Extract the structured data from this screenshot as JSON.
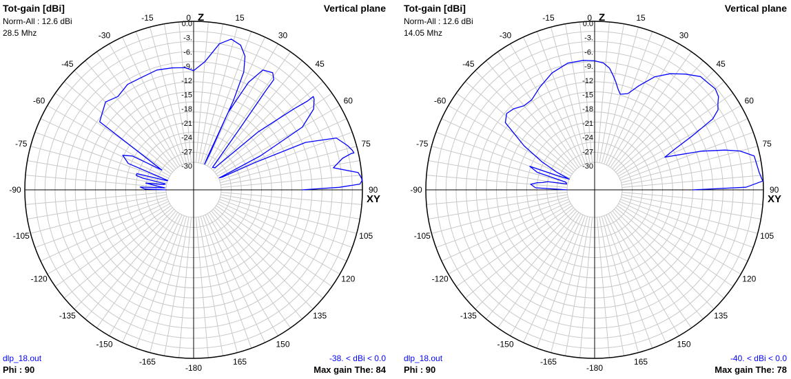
{
  "chart_data": [
    {
      "type": "polar",
      "title": "Tot-gain [dBi]",
      "subtitle": "Vertical plane",
      "norm_label": "Norm-All : 12.6 dBi",
      "frequency": "28.5 Mhz",
      "file": "dlp_18.out",
      "phi": "Phi : 90",
      "range_label": "-38. < dBi < 0.0",
      "max_gain": "Max gain The: 84",
      "axis_z": "Z",
      "axis_xy": "XY",
      "angle_labels": [
        "0",
        "15",
        "30",
        "45",
        "60",
        "75",
        "90",
        "105",
        "120",
        "135",
        "150",
        "165",
        "-180",
        "-165",
        "-150",
        "-135",
        "-120",
        "-105",
        "-90",
        "-75",
        "-60",
        "-45",
        "-30",
        "-15"
      ],
      "db_labels": [
        "0.0",
        "-3.",
        "-6.",
        "-9.",
        "-12",
        "-15",
        "-18",
        "-21",
        "-24",
        "-27",
        "-30"
      ],
      "r_min_db": -30,
      "r_max_db": 0,
      "series": [
        {
          "color": "#0000ff",
          "theta": [
            -90,
            -89,
            -87,
            -86,
            -84,
            -82,
            -80,
            -78,
            -77,
            -76,
            -74,
            -71,
            -70,
            -68,
            -64,
            -61,
            -58,
            -54,
            -50,
            -45,
            -39,
            -32,
            -25,
            -17,
            -10,
            -4,
            0,
            5,
            10,
            14,
            18,
            21,
            23,
            24,
            24,
            23,
            23,
            24,
            27,
            30,
            34,
            36,
            36,
            37,
            40,
            44,
            48,
            51,
            52,
            52,
            53,
            56,
            60,
            63,
            65,
            66,
            66,
            67,
            70,
            74,
            76,
            77,
            77,
            78,
            81,
            84,
            86,
            87,
            87,
            88,
            89,
            90
          ],
          "db": [
            -30,
            -25.5,
            -24.5,
            -29.7,
            -28.1,
            -25.6,
            -29.4,
            -29.7,
            -24.8,
            -23.3,
            -23.3,
            -29.9,
            -30,
            -20.9,
            -19.1,
            -21,
            -27.9,
            -11.2,
            -10.5,
            -9.4,
            -10.3,
            -9.4,
            -9.5,
            -9.2,
            -9.5,
            -9.8,
            -10.5,
            -8.5,
            -4.3,
            -2.8,
            -3.5,
            -5.4,
            -8.6,
            -15.1,
            -27.4,
            -29.9,
            -28.3,
            -17.8,
            -10.2,
            -6.4,
            -5.8,
            -6.9,
            -9.6,
            -19.7,
            -29.6,
            -29.3,
            -17.5,
            -8.5,
            -5.2,
            -3.6,
            -3.8,
            -5.1,
            -9.2,
            -19.9,
            -29.8,
            -29.2,
            -21.4,
            -10,
            -3.6,
            -1.8,
            -1.1,
            -0.9,
            -1.5,
            -3.5,
            -5.8,
            -0.7,
            -0.1,
            0,
            -0.1,
            -0.5,
            -4.9,
            -12.8
          ]
        }
      ]
    },
    {
      "type": "polar",
      "title": "Tot-gain [dBi]",
      "subtitle": "Vertical plane",
      "norm_label": "Norm-All : 12.6 dBi",
      "frequency": "14.05 Mhz",
      "file": "dlp_18.out",
      "phi": "Phi : 90",
      "range_label": "-40. < dBi < 0.0",
      "max_gain": "Max gain The: 78",
      "axis_z": "Z",
      "axis_xy": "XY",
      "angle_labels": [
        "0",
        "15",
        "30",
        "45",
        "60",
        "75",
        "90",
        "105",
        "120",
        "135",
        "150",
        "165",
        "-180",
        "-165",
        "-150",
        "-135",
        "-120",
        "-105",
        "-90",
        "-75",
        "-60",
        "-45",
        "-30",
        "-15"
      ],
      "db_labels": [
        "0.0",
        "-3.",
        "-6.",
        "-9.",
        "-12",
        "-15",
        "-18",
        "-21",
        "-24",
        "-27",
        "-30"
      ],
      "r_min_db": -30,
      "r_max_db": 0,
      "series": [
        {
          "color": "#0000ff",
          "theta": [
            -90,
            -88,
            -85,
            -83,
            -82,
            -80,
            -78,
            -75,
            -73,
            -70,
            -69,
            -67,
            -65,
            -62,
            -58,
            -53,
            -49,
            -45,
            -40,
            -35,
            -28,
            -20,
            -12,
            -5,
            0,
            4,
            7,
            9,
            11,
            13,
            15,
            19,
            23,
            28,
            33,
            38,
            43,
            47,
            50,
            53,
            55,
            57,
            59,
            61,
            63,
            65,
            67,
            70,
            73,
            75,
            78,
            81,
            84,
            87,
            89,
            90
          ],
          "db": [
            -30,
            -23.3,
            -22.2,
            -23.5,
            -24.7,
            -25.8,
            -29.8,
            -29.5,
            -23.1,
            -21.2,
            -27.6,
            -30,
            -27,
            -23.2,
            -18.2,
            -12.1,
            -11.1,
            -11.5,
            -12.5,
            -12.5,
            -11.1,
            -9.4,
            -8.3,
            -8.2,
            -8.4,
            -8.8,
            -9.8,
            -11.1,
            -12.4,
            -13.8,
            -14.8,
            -14.2,
            -11.8,
            -8.6,
            -6.4,
            -4.6,
            -2.9,
            -2.7,
            -2.4,
            -2.9,
            -3.9,
            -4.6,
            -6.6,
            -12.1,
            -16.7,
            -19.4,
            -17,
            -11.8,
            -6.9,
            -3.9,
            -1.2,
            -1,
            -0.7,
            -0.1,
            -3.7,
            -15
          ]
        }
      ]
    }
  ]
}
